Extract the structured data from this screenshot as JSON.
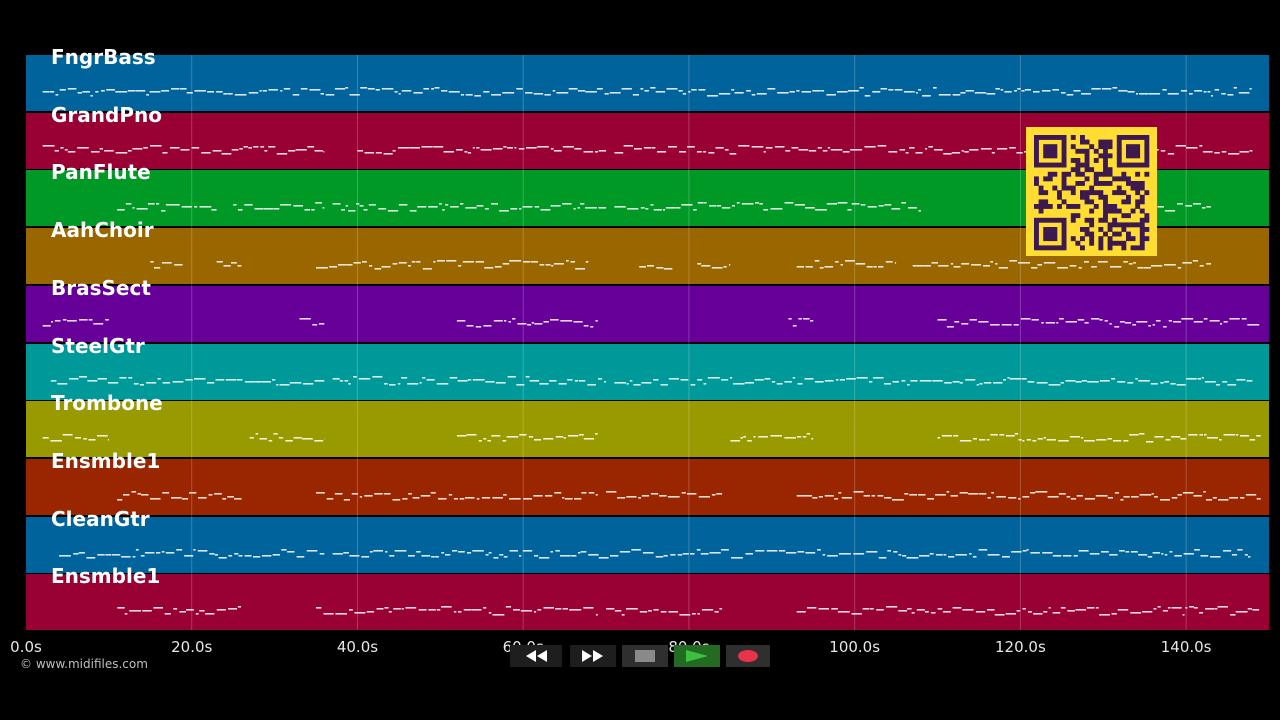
{
  "tracks": [
    {
      "name": "FngrBass",
      "color": "#00639b"
    },
    {
      "name": "GrandPno",
      "color": "#990033"
    },
    {
      "name": "PanFlute",
      "color": "#009926"
    },
    {
      "name": "AahChoir",
      "color": "#996600"
    },
    {
      "name": "BrasSect",
      "color": "#660099"
    },
    {
      "name": "SteelGtr",
      "color": "#009999"
    },
    {
      "name": "Trombone",
      "color": "#999900"
    },
    {
      "name": "Ensmble1",
      "color": "#992600"
    },
    {
      "name": "CleanGtr",
      "color": "#00639b"
    },
    {
      "name": "Ensmble1",
      "color": "#990033"
    }
  ],
  "timeline": {
    "duration_s": 150,
    "ticks": [
      "0.0s",
      "20.0s",
      "40.0s",
      "60.0s",
      "80.0s",
      "100.0s",
      "120.0s",
      "140.0s"
    ]
  },
  "copyright": "© www.midifiles.com",
  "transport": {
    "rewind": "rewind-icon",
    "fast_forward": "fast-forward-icon",
    "stop": "stop-icon",
    "play": "play-icon",
    "record": "record-icon"
  }
}
